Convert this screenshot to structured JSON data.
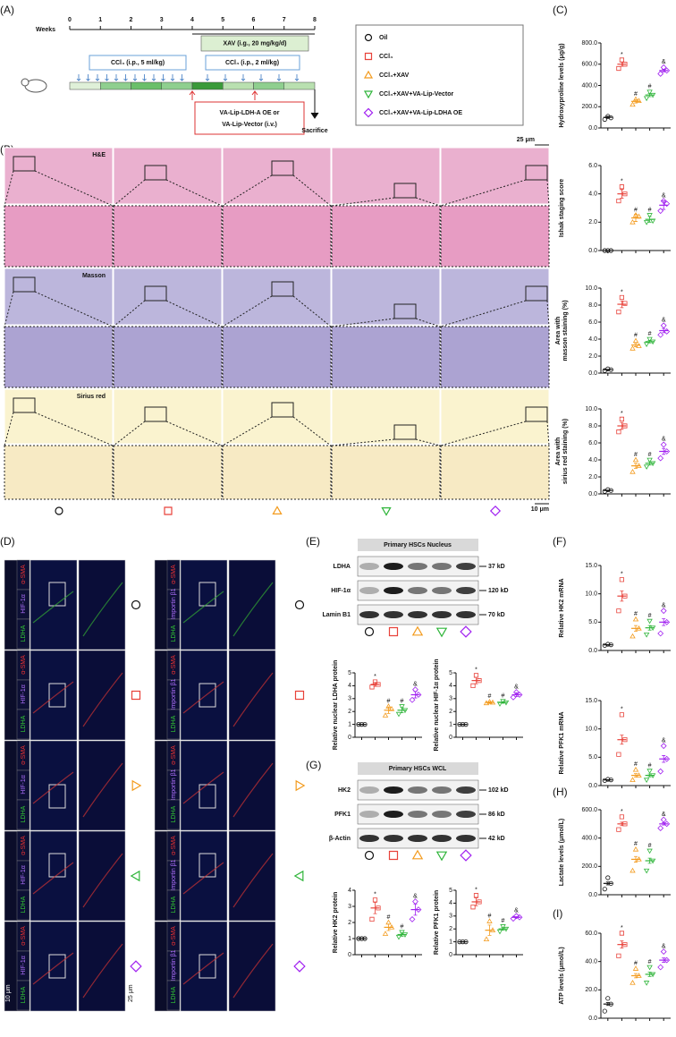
{
  "panels": [
    "(A)",
    "(B)",
    "(C)",
    "(D)",
    "(E)",
    "(F)",
    "(G)",
    "(H)",
    "(I)"
  ],
  "groups": [
    {
      "name": "Oil",
      "color": "#111111",
      "shape": "circle"
    },
    {
      "name": "CCl₄",
      "color": "#e8423a",
      "shape": "square"
    },
    {
      "name": "CCl₄+XAV",
      "color": "#f39b1e",
      "shape": "triangle-up"
    },
    {
      "name": "CCl₄+XAV+VA-Lip-Vector",
      "color": "#2fb53a",
      "shape": "triangle-down"
    },
    {
      "name": "CCl₄+XAV+VA-Lip-LDHA OE",
      "color": "#a020f0",
      "shape": "diamond"
    }
  ],
  "timeline": {
    "axis_label": "Weeks",
    "weeks": [
      0,
      1,
      2,
      3,
      4,
      5,
      6,
      7,
      8
    ],
    "xav": "XAV (i.g., 20 mg/kg/d)",
    "ccl4_high": "CCl₄ (i.p., 5 ml/kg)",
    "ccl4_low": "CCl₄ (i.p., 2 ml/kg)",
    "injection": [
      "VA-Lip-LDH-A OE or",
      "VA-Lip-Vector (i.v.)"
    ],
    "endpoint": "Sacrifice"
  },
  "histology": {
    "stains": [
      "H&E",
      "Masson",
      "Sirius red"
    ],
    "scale_top": "25 μm",
    "scale_bottom": "10 μm"
  },
  "immunofluorescence": {
    "left_channels": [
      "α-SMA",
      "HIF-1α",
      "LDHA"
    ],
    "right_channels": [
      "α-SMA",
      "Importin β1",
      "LDHA"
    ],
    "scale_left": "10 μm",
    "scale_right": "25 μm"
  },
  "blots": [
    {
      "title": "Primary HSCs Nucleus",
      "rows": [
        {
          "protein": "LDHA",
          "size": "37 kD"
        },
        {
          "protein": "HIF-1α",
          "size": "120 kD"
        },
        {
          "protein": "Lamin B1",
          "size": "70 kD"
        }
      ]
    },
    {
      "title": "Primary HSCs WCL",
      "rows": [
        {
          "protein": "HK2",
          "size": "102 kD"
        },
        {
          "protein": "PFK1",
          "size": "86 kD"
        },
        {
          "protein": "β-Actin",
          "size": "42 kD"
        }
      ]
    }
  ],
  "chart_data": [
    {
      "type": "dot",
      "ylabel": [
        "Hydroxyproline levels (μg/g)"
      ],
      "categories": [
        null,
        null,
        null,
        null,
        null
      ],
      "values": [
        100,
        600,
        250,
        310,
        540
      ],
      "errors": [
        10,
        20,
        15,
        15,
        12
      ],
      "points": [
        [
          80,
          110,
          95
        ],
        [
          560,
          640,
          600
        ],
        [
          220,
          270,
          255
        ],
        [
          280,
          340,
          310
        ],
        [
          510,
          570,
          540
        ]
      ],
      "annotations": [
        null,
        "*",
        "#",
        "#",
        "&"
      ],
      "ylim": [
        0,
        800
      ],
      "yticks": [
        {
          "value": 0,
          "label": "0.0"
        },
        {
          "value": 200,
          "label": "200.0"
        },
        {
          "value": 400,
          "label": "400.0"
        },
        {
          "value": 600,
          "label": "600.0"
        },
        {
          "value": 800,
          "label": "800.0"
        }
      ]
    },
    {
      "type": "dot",
      "ylabel": [
        "Ishak staging score"
      ],
      "categories": [
        null,
        null,
        null,
        null,
        null
      ],
      "values": [
        0,
        4,
        2.3,
        2.2,
        3.2
      ],
      "errors": [
        0,
        0.3,
        0.25,
        0.2,
        0.3
      ],
      "points": [
        [
          0,
          0,
          0
        ],
        [
          3.5,
          4.5,
          4
        ],
        [
          2,
          2.5,
          2.4
        ],
        [
          2,
          2.5,
          2.1
        ],
        [
          2.8,
          3.5,
          3.3
        ]
      ],
      "annotations": [
        null,
        "*",
        "#",
        "#",
        "&"
      ],
      "ylim": [
        0,
        6
      ],
      "yticks": [
        {
          "value": 0,
          "label": "0.0"
        },
        {
          "value": 2,
          "label": "2.0"
        },
        {
          "value": 4,
          "label": "4.0"
        },
        {
          "value": 6,
          "label": "6.0"
        }
      ]
    },
    {
      "type": "dot",
      "ylabel": [
        "Area with",
        "masson staining (%)"
      ],
      "categories": [
        null,
        null,
        null,
        null,
        null
      ],
      "values": [
        0.4,
        8.1,
        3.3,
        3.7,
        5
      ],
      "errors": [
        0.05,
        0.4,
        0.2,
        0.15,
        0.25
      ],
      "points": [
        [
          0.3,
          0.5,
          0.4
        ],
        [
          7.2,
          8.9,
          8.2
        ],
        [
          2.9,
          3.8,
          3.2
        ],
        [
          3.4,
          4,
          3.7
        ],
        [
          4.5,
          5.6,
          4.9
        ]
      ],
      "annotations": [
        null,
        "*",
        "#",
        "#",
        "&"
      ],
      "ylim": [
        0,
        10
      ],
      "yticks": [
        {
          "value": 0,
          "label": "0.0"
        },
        {
          "value": 2,
          "label": "2.0"
        },
        {
          "value": 4,
          "label": "4.0"
        },
        {
          "value": 6,
          "label": "6.0"
        },
        {
          "value": 8,
          "label": "8.0"
        },
        {
          "value": 10,
          "label": "10.0"
        }
      ]
    },
    {
      "type": "dot",
      "ylabel": [
        "Area with",
        "sirius red staining (%)"
      ],
      "categories": [
        null,
        null,
        null,
        null,
        null
      ],
      "values": [
        0.4,
        8,
        3.3,
        3.6,
        5
      ],
      "errors": [
        0.05,
        0.4,
        0.3,
        0.2,
        0.35
      ],
      "points": [
        [
          0.3,
          0.5,
          0.4
        ],
        [
          7.3,
          8.8,
          8
        ],
        [
          2.6,
          4,
          3.3
        ],
        [
          3.2,
          4,
          3.6
        ],
        [
          4.2,
          5.8,
          5
        ]
      ],
      "annotations": [
        null,
        "*",
        "#",
        "#",
        "&"
      ],
      "ylim": [
        0,
        10
      ],
      "yticks": [
        {
          "value": 0,
          "label": "0.0"
        },
        {
          "value": 2,
          "label": "2.0"
        },
        {
          "value": 4,
          "label": "4.0"
        },
        {
          "value": 6,
          "label": "6.0"
        },
        {
          "value": 8,
          "label": "8.0"
        },
        {
          "value": 10,
          "label": "10.0"
        }
      ]
    },
    {
      "type": "dot",
      "ylabel": [
        "Relative nuclear LDHA protein"
      ],
      "categories": [
        null,
        null,
        null,
        null,
        null
      ],
      "values": [
        1,
        4.1,
        2.1,
        2.1,
        3.3
      ],
      "errors": [
        0,
        0.15,
        0.25,
        0.2,
        0.25
      ],
      "points": [
        [
          1,
          1,
          1
        ],
        [
          3.9,
          4.3,
          4.1
        ],
        [
          1.7,
          2.4,
          2.2
        ],
        [
          1.8,
          2.4,
          2.1
        ],
        [
          2.9,
          3.7,
          3.3
        ]
      ],
      "annotations": [
        null,
        "*",
        "#",
        "#",
        "&"
      ],
      "ylim": [
        0,
        5
      ],
      "yticks": [
        0,
        1,
        2,
        3,
        4,
        5
      ]
    },
    {
      "type": "dot",
      "ylabel": [
        "Relative nuclear HIF-1α protein"
      ],
      "categories": [
        null,
        null,
        null,
        null,
        null
      ],
      "values": [
        1,
        4.4,
        2.7,
        2.7,
        3.3
      ],
      "errors": [
        0,
        0.25,
        0.05,
        0.05,
        0.15
      ],
      "points": [
        [
          1,
          1,
          1
        ],
        [
          4,
          4.8,
          4.4
        ],
        [
          2.65,
          2.75,
          2.7
        ],
        [
          2.6,
          2.8,
          2.7
        ],
        [
          3.1,
          3.5,
          3.3
        ]
      ],
      "annotations": [
        null,
        "*",
        "#",
        "#",
        "&"
      ],
      "ylim": [
        0,
        5
      ],
      "yticks": [
        0,
        1,
        2,
        3,
        4,
        5
      ]
    },
    {
      "type": "dot",
      "ylabel": [
        "Relative HK2 mRNA"
      ],
      "categories": [
        null,
        null,
        null,
        null,
        null
      ],
      "values": [
        1,
        9.6,
        3.9,
        4,
        5
      ],
      "errors": [
        0.05,
        0.9,
        0.5,
        0.4,
        0.6
      ],
      "points": [
        [
          0.9,
          1.1,
          1
        ],
        [
          7,
          12.5,
          9.6
        ],
        [
          2.5,
          5.5,
          3.9
        ],
        [
          2.8,
          5.2,
          4
        ],
        [
          3,
          7,
          5
        ]
      ],
      "annotations": [
        null,
        "*",
        "#",
        "#",
        "&"
      ],
      "ylim": [
        0,
        15
      ],
      "yticks": [
        {
          "value": 0,
          "label": "0.0"
        },
        {
          "value": 5,
          "label": "5.0"
        },
        {
          "value": 10,
          "label": "10.0"
        },
        {
          "value": 15,
          "label": "15.0"
        }
      ]
    },
    {
      "type": "dot",
      "ylabel": [
        "Relative PFK1 mRNA"
      ],
      "categories": [
        null,
        null,
        null,
        null,
        null
      ],
      "values": [
        1,
        8.1,
        1.8,
        1.8,
        4.7
      ],
      "errors": [
        0.05,
        0.8,
        0.3,
        0.25,
        0.6
      ],
      "points": [
        [
          0.9,
          1.1,
          1
        ],
        [
          5.5,
          12.5,
          8.1
        ],
        [
          1,
          2.8,
          1.8
        ],
        [
          1,
          2.6,
          1.8
        ],
        [
          2.5,
          7,
          4.7
        ]
      ],
      "annotations": [
        null,
        "*",
        "#",
        "#",
        "&"
      ],
      "ylim": [
        0,
        15
      ],
      "yticks": [
        {
          "value": 0,
          "label": "0.0"
        },
        {
          "value": 5,
          "label": "5.0"
        },
        {
          "value": 10,
          "label": "10.0"
        },
        {
          "value": 15,
          "label": "15.0"
        }
      ]
    },
    {
      "type": "dot",
      "ylabel": [
        "Relative HK2 protein"
      ],
      "categories": [
        null,
        null,
        null,
        null,
        null
      ],
      "values": [
        1,
        2.9,
        1.7,
        1.25,
        2.8
      ],
      "errors": [
        0,
        0.35,
        0.2,
        0.1,
        0.35
      ],
      "points": [
        [
          1,
          1,
          1
        ],
        [
          2.2,
          3.4,
          2.9
        ],
        [
          1.3,
          2,
          1.7
        ],
        [
          1.1,
          1.4,
          1.25
        ],
        [
          2.2,
          3.3,
          2.8
        ]
      ],
      "annotations": [
        null,
        "*",
        "#",
        "#",
        "&"
      ],
      "ylim": [
        0,
        4
      ],
      "yticks": [
        0,
        1,
        2,
        3,
        4
      ]
    },
    {
      "type": "dot",
      "ylabel": [
        "Relative PFK1 protein"
      ],
      "categories": [
        null,
        null,
        null,
        null,
        null
      ],
      "values": [
        1,
        4.1,
        1.9,
        2,
        2.9
      ],
      "errors": [
        0,
        0.3,
        0.4,
        0.1,
        0.05
      ],
      "points": [
        [
          1,
          1,
          1
        ],
        [
          3.7,
          4.6,
          4.1
        ],
        [
          1.2,
          2.6,
          1.9
        ],
        [
          1.8,
          2.2,
          2
        ],
        [
          2.8,
          3,
          2.9
        ]
      ],
      "annotations": [
        null,
        "*",
        "#",
        "#",
        "&"
      ],
      "ylim": [
        0,
        5
      ],
      "yticks": [
        0,
        1,
        2,
        3,
        4,
        5
      ]
    },
    {
      "type": "dot",
      "ylabel": [
        "Lactate levels (μmol/L)"
      ],
      "categories": [
        null,
        null,
        null,
        null,
        null
      ],
      "values": [
        80,
        500,
        250,
        240,
        500
      ],
      "errors": [
        10,
        12,
        20,
        18,
        8
      ],
      "points": [
        [
          40,
          120,
          80
        ],
        [
          460,
          550,
          500
        ],
        [
          170,
          320,
          250
        ],
        [
          170,
          310,
          240
        ],
        [
          470,
          530,
          500
        ]
      ],
      "annotations": [
        null,
        "*",
        "#",
        "#",
        "&"
      ],
      "ylim": [
        0,
        600
      ],
      "yticks": [
        {
          "value": 0,
          "label": "0.0"
        },
        {
          "value": 200,
          "label": "200.0"
        },
        {
          "value": 400,
          "label": "400.0"
        },
        {
          "value": 600,
          "label": "600.0"
        }
      ]
    },
    {
      "type": "dot",
      "ylabel": [
        "ATP levels (μmol/L)"
      ],
      "categories": [
        null,
        null,
        null,
        null,
        null
      ],
      "values": [
        10,
        52,
        30,
        31,
        41
      ],
      "errors": [
        1,
        2.5,
        1.5,
        1.5,
        1.5
      ],
      "points": [
        [
          5,
          14,
          10
        ],
        [
          44,
          60,
          52
        ],
        [
          25,
          35,
          30
        ],
        [
          25,
          36,
          31
        ],
        [
          36,
          47,
          41
        ]
      ],
      "annotations": [
        null,
        "*",
        "#",
        "#",
        "&"
      ],
      "ylim": [
        0,
        60
      ],
      "yticks": [
        {
          "value": 0,
          "label": "0.0"
        },
        {
          "value": 20,
          "label": "20.0"
        },
        {
          "value": 40,
          "label": "40.0"
        },
        {
          "value": 60,
          "label": "60.0"
        }
      ]
    }
  ]
}
